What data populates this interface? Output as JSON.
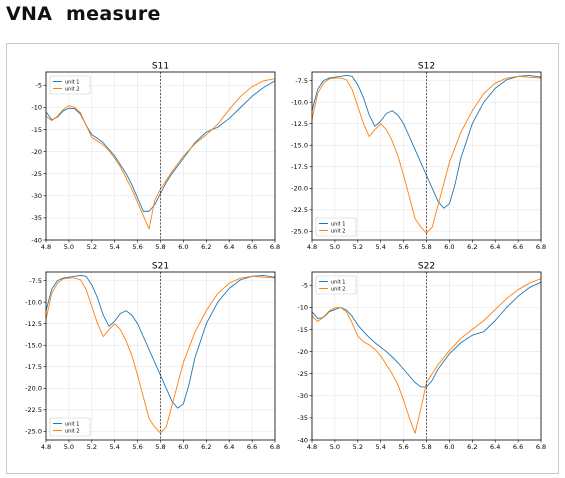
{
  "page": {
    "title": "VNA  measure"
  },
  "chart_data": [
    {
      "type": "line",
      "title": "S11",
      "xlim": [
        4.8,
        6.8
      ],
      "ylim": [
        -40,
        -2
      ],
      "xticks": [
        4.8,
        5.0,
        5.2,
        5.4,
        5.6,
        5.8,
        6.0,
        6.2,
        6.4,
        6.6,
        6.8
      ],
      "yticks": [
        -5,
        -10,
        -15,
        -20,
        -25,
        -30,
        -35,
        -40
      ],
      "ytick_labels": [
        "-5",
        "-10",
        "-15",
        "-20",
        "-25",
        "-30",
        "-35",
        "-40"
      ],
      "grid": true,
      "legend": "upper left",
      "vline_x": 5.8,
      "series": [
        {
          "name": "unit 1",
          "color": "#1f77b4",
          "x": [
            4.8,
            4.85,
            4.9,
            4.95,
            5.0,
            5.05,
            5.1,
            5.15,
            5.2,
            5.25,
            5.3,
            5.35,
            5.4,
            5.45,
            5.5,
            5.55,
            5.6,
            5.65,
            5.7,
            5.75,
            5.8,
            5.85,
            5.9,
            6.0,
            6.1,
            6.2,
            6.3,
            6.4,
            6.5,
            6.6,
            6.7,
            6.8
          ],
          "y": [
            -11,
            -12.8,
            -12.2,
            -10.8,
            -10.2,
            -10.3,
            -11.5,
            -14,
            -16.2,
            -17,
            -18,
            -19.5,
            -21,
            -23,
            -25,
            -27.5,
            -30.5,
            -33.5,
            -33.5,
            -32,
            -29.5,
            -27,
            -25,
            -21.5,
            -18,
            -15.6,
            -14.5,
            -12.5,
            -10,
            -7.5,
            -5.5,
            -4
          ]
        },
        {
          "name": "unit 2",
          "color": "#ff7f0e",
          "x": [
            4.8,
            4.85,
            4.9,
            4.95,
            5.0,
            5.05,
            5.1,
            5.15,
            5.2,
            5.25,
            5.3,
            5.35,
            5.4,
            5.45,
            5.5,
            5.55,
            5.6,
            5.65,
            5.7,
            5.75,
            5.8,
            5.85,
            5.9,
            6.0,
            6.1,
            6.2,
            6.3,
            6.4,
            6.5,
            6.6,
            6.7,
            6.8
          ],
          "y": [
            -12,
            -13,
            -12,
            -10.5,
            -9.6,
            -10,
            -11.2,
            -14,
            -16.8,
            -17.6,
            -18.5,
            -19.8,
            -21.5,
            -23.5,
            -26,
            -28.5,
            -31.5,
            -34.5,
            -37.5,
            -31,
            -28.5,
            -26.5,
            -24.5,
            -21,
            -18.3,
            -16.2,
            -13.8,
            -10.5,
            -7.5,
            -5.3,
            -4,
            -3.5
          ]
        }
      ]
    },
    {
      "type": "line",
      "title": "S12",
      "xlim": [
        4.8,
        6.8
      ],
      "ylim": [
        -26,
        -6.5
      ],
      "xticks": [
        4.8,
        5.0,
        5.2,
        5.4,
        5.6,
        5.8,
        6.0,
        6.2,
        6.4,
        6.6,
        6.8
      ],
      "yticks": [
        -7.5,
        -10,
        -12.5,
        -15,
        -17.5,
        -20,
        -22.5,
        -25
      ],
      "ytick_labels": [
        "-7.5",
        "-10.0",
        "-12.5",
        "-15.0",
        "-17.5",
        "-20.0",
        "-22.5",
        "-25.0"
      ],
      "grid": true,
      "legend": "lower left",
      "vline_x": 5.8,
      "series": [
        {
          "name": "unit 1",
          "color": "#1f77b4",
          "x": [
            4.8,
            4.85,
            4.9,
            4.95,
            5.0,
            5.05,
            5.1,
            5.15,
            5.2,
            5.25,
            5.3,
            5.35,
            5.4,
            5.45,
            5.5,
            5.55,
            5.6,
            5.65,
            5.7,
            5.75,
            5.8,
            5.85,
            5.9,
            5.95,
            6.0,
            6.05,
            6.1,
            6.2,
            6.3,
            6.4,
            6.5,
            6.6,
            6.7,
            6.8
          ],
          "y": [
            -11,
            -8.5,
            -7.5,
            -7.2,
            -7.1,
            -7.0,
            -6.9,
            -7.0,
            -8.0,
            -9.5,
            -11.5,
            -12.8,
            -12.2,
            -11.3,
            -11.0,
            -11.5,
            -12.5,
            -14,
            -15.5,
            -17.0,
            -18.5,
            -20,
            -21.5,
            -22.3,
            -21.8,
            -19.5,
            -16.5,
            -12.5,
            -10,
            -8.4,
            -7.4,
            -7.0,
            -6.9,
            -7.1
          ]
        },
        {
          "name": "unit 2",
          "color": "#ff7f0e",
          "x": [
            4.8,
            4.85,
            4.9,
            4.95,
            5.0,
            5.05,
            5.1,
            5.15,
            5.2,
            5.25,
            5.3,
            5.35,
            5.4,
            5.45,
            5.5,
            5.55,
            5.6,
            5.65,
            5.7,
            5.75,
            5.8,
            5.85,
            5.9,
            5.95,
            6.0,
            6.1,
            6.2,
            6.3,
            6.4,
            6.5,
            6.6,
            6.7,
            6.8
          ],
          "y": [
            -12,
            -9,
            -7.8,
            -7.3,
            -7.2,
            -7.2,
            -7.4,
            -8.5,
            -10.5,
            -12.5,
            -14,
            -13.2,
            -12.5,
            -13.2,
            -14.5,
            -16.2,
            -18.5,
            -21,
            -23.5,
            -24.5,
            -25.2,
            -24.5,
            -22,
            -19.5,
            -17,
            -13.5,
            -11,
            -9,
            -7.8,
            -7.2,
            -7.0,
            -7.1,
            -7.2
          ]
        }
      ]
    },
    {
      "type": "line",
      "title": "S21",
      "xlim": [
        4.8,
        6.8
      ],
      "ylim": [
        -26,
        -6.5
      ],
      "xticks": [
        4.8,
        5.0,
        5.2,
        5.4,
        5.6,
        5.8,
        6.0,
        6.2,
        6.4,
        6.6,
        6.8
      ],
      "yticks": [
        -7.5,
        -10,
        -12.5,
        -15,
        -17.5,
        -20,
        -22.5,
        -25
      ],
      "ytick_labels": [
        "-7.5",
        "-10.0",
        "-12.5",
        "-15.0",
        "-17.5",
        "-20.0",
        "-22.5",
        "-25.0"
      ],
      "grid": true,
      "legend": "lower left",
      "vline_x": 5.8,
      "series": [
        {
          "name": "unit 1",
          "color": "#1f77b4",
          "x": [
            4.8,
            4.85,
            4.9,
            4.95,
            5.0,
            5.05,
            5.1,
            5.15,
            5.2,
            5.25,
            5.3,
            5.35,
            5.4,
            5.45,
            5.5,
            5.55,
            5.6,
            5.65,
            5.7,
            5.75,
            5.8,
            5.85,
            5.9,
            5.95,
            6.0,
            6.05,
            6.1,
            6.2,
            6.3,
            6.4,
            6.5,
            6.6,
            6.7,
            6.8
          ],
          "y": [
            -11,
            -8.5,
            -7.5,
            -7.2,
            -7.1,
            -7.0,
            -6.9,
            -7.0,
            -8.0,
            -9.5,
            -11.5,
            -12.8,
            -12.2,
            -11.3,
            -11.0,
            -11.5,
            -12.5,
            -14,
            -15.5,
            -17.0,
            -18.5,
            -20,
            -21.5,
            -22.3,
            -21.8,
            -19.5,
            -16.5,
            -12.5,
            -10,
            -8.4,
            -7.4,
            -7.0,
            -6.9,
            -7.1
          ]
        },
        {
          "name": "unit 2",
          "color": "#ff7f0e",
          "x": [
            4.8,
            4.85,
            4.9,
            4.95,
            5.0,
            5.05,
            5.1,
            5.15,
            5.2,
            5.25,
            5.3,
            5.35,
            5.4,
            5.45,
            5.5,
            5.55,
            5.6,
            5.65,
            5.7,
            5.75,
            5.8,
            5.85,
            5.9,
            5.95,
            6.0,
            6.1,
            6.2,
            6.3,
            6.4,
            6.5,
            6.6,
            6.7,
            6.8
          ],
          "y": [
            -12,
            -9,
            -7.8,
            -7.3,
            -7.2,
            -7.2,
            -7.4,
            -8.5,
            -10.5,
            -12.5,
            -14,
            -13.2,
            -12.5,
            -13.2,
            -14.5,
            -16.2,
            -18.5,
            -21,
            -23.5,
            -24.5,
            -25.2,
            -24.5,
            -22,
            -19.5,
            -17,
            -13.5,
            -11,
            -9,
            -7.8,
            -7.2,
            -7.0,
            -7.1,
            -7.2
          ]
        }
      ]
    },
    {
      "type": "line",
      "title": "S22",
      "xlim": [
        4.8,
        6.8
      ],
      "ylim": [
        -40,
        -2
      ],
      "xticks": [
        4.8,
        5.0,
        5.2,
        5.4,
        5.6,
        5.8,
        6.0,
        6.2,
        6.4,
        6.6,
        6.8
      ],
      "yticks": [
        -5,
        -10,
        -15,
        -20,
        -25,
        -30,
        -35,
        -40
      ],
      "ytick_labels": [
        "-5",
        "-10",
        "-15",
        "-20",
        "-25",
        "-30",
        "-35",
        "-40"
      ],
      "grid": true,
      "legend": "upper left",
      "vline_x": 5.8,
      "series": [
        {
          "name": "unit 1",
          "color": "#1f77b4",
          "x": [
            4.8,
            4.85,
            4.9,
            4.95,
            5.0,
            5.05,
            5.1,
            5.15,
            5.2,
            5.25,
            5.3,
            5.35,
            5.4,
            5.45,
            5.5,
            5.55,
            5.6,
            5.65,
            5.7,
            5.75,
            5.8,
            5.85,
            5.9,
            6.0,
            6.1,
            6.2,
            6.3,
            6.4,
            6.5,
            6.6,
            6.7,
            6.8
          ],
          "y": [
            -11,
            -12.5,
            -12.3,
            -11,
            -10.5,
            -10,
            -10.6,
            -12,
            -14,
            -15.5,
            -16.8,
            -18,
            -19,
            -20,
            -21.2,
            -22.5,
            -24,
            -25.5,
            -27,
            -28,
            -28,
            -26.5,
            -24,
            -20.5,
            -18,
            -16.3,
            -15.5,
            -13,
            -10,
            -7.5,
            -5.5,
            -4.3
          ]
        },
        {
          "name": "unit 2",
          "color": "#ff7f0e",
          "x": [
            4.8,
            4.85,
            4.9,
            4.95,
            5.0,
            5.05,
            5.1,
            5.15,
            5.2,
            5.25,
            5.3,
            5.35,
            5.4,
            5.45,
            5.5,
            5.55,
            5.6,
            5.65,
            5.7,
            5.75,
            5.8,
            5.85,
            5.9,
            6.0,
            6.1,
            6.2,
            6.3,
            6.4,
            6.5,
            6.6,
            6.7,
            6.8
          ],
          "y": [
            -12,
            -13.2,
            -12.2,
            -10.8,
            -10.1,
            -10,
            -11,
            -13.5,
            -16.5,
            -17.8,
            -18.5,
            -19.5,
            -21,
            -23,
            -25,
            -27.5,
            -31,
            -35,
            -38.5,
            -33,
            -27,
            -25,
            -23,
            -19.8,
            -17,
            -15,
            -13,
            -10.5,
            -8,
            -6,
            -4.5,
            -3.5
          ]
        }
      ]
    }
  ]
}
